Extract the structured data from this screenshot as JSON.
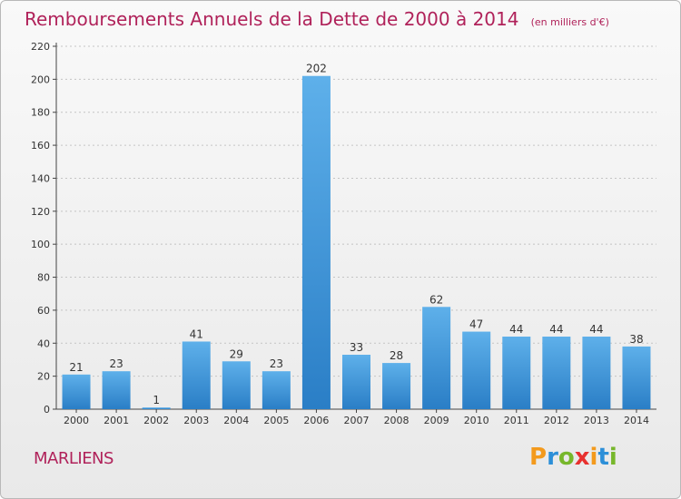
{
  "header": {
    "title": "Remboursements Annuels de la Dette de 2000 à 2014",
    "unit": "(en milliers d'€)"
  },
  "commune": "MARLIENS",
  "logo": {
    "letters": [
      "P",
      "r",
      "o",
      "x",
      "i",
      "t",
      "i"
    ],
    "colors": [
      "#f39a1d",
      "#2c8fd8",
      "#77b72b",
      "#e8312f",
      "#f39a1d",
      "#2c8fd8",
      "#77b72b"
    ]
  },
  "chart_data": {
    "type": "bar",
    "title": "Remboursements Annuels de la Dette de 2000 à 2014",
    "xlabel": "",
    "ylabel": "",
    "categories": [
      "2000",
      "2001",
      "2002",
      "2003",
      "2004",
      "2005",
      "2006",
      "2007",
      "2008",
      "2009",
      "2010",
      "2011",
      "2012",
      "2013",
      "2014"
    ],
    "values": [
      21,
      23,
      1,
      41,
      29,
      23,
      202,
      33,
      28,
      62,
      47,
      44,
      44,
      44,
      38
    ],
    "ylim": [
      0,
      220
    ],
    "yticks": [
      0,
      20,
      40,
      60,
      80,
      100,
      120,
      140,
      160,
      180,
      200,
      220
    ],
    "grid": "horizontal dotted",
    "bar_color_top": "#5eb0ea",
    "bar_color_bottom": "#2a7ec6"
  }
}
